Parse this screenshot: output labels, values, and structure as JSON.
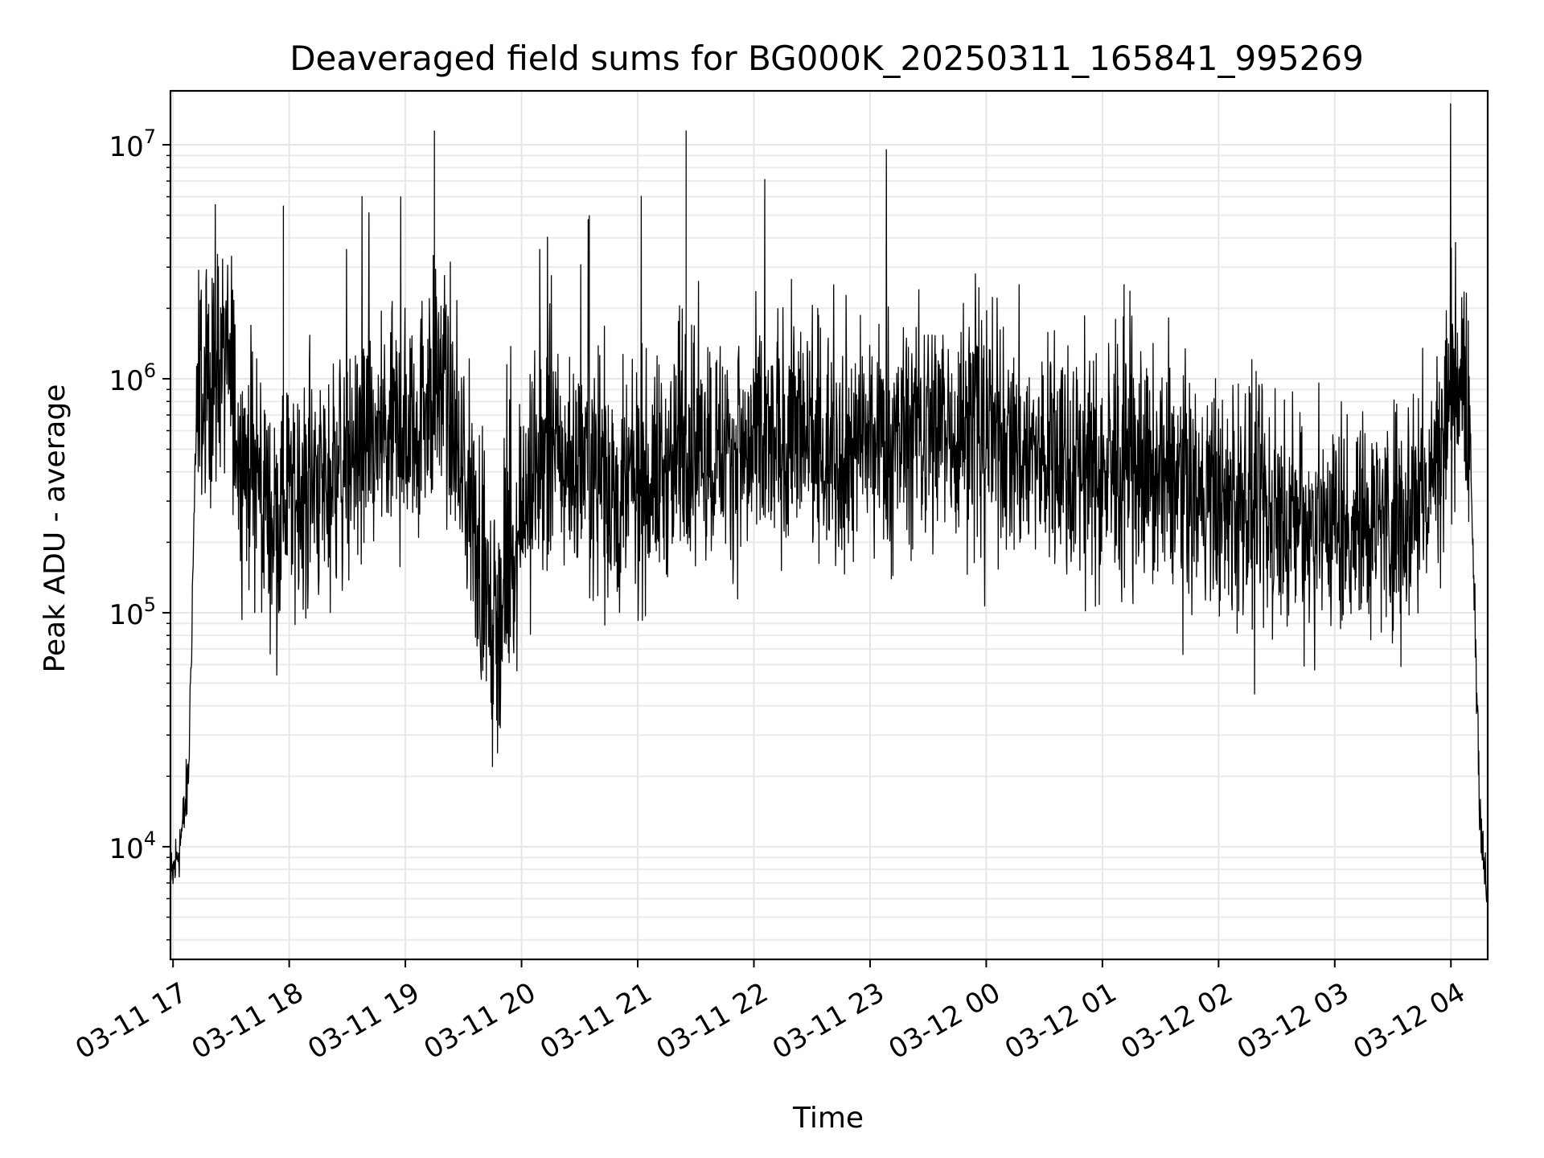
{
  "chart_data": {
    "type": "line",
    "title": "Deaveraged field sums for BG000K_20250311_165841_995269",
    "xlabel": "Time",
    "ylabel": "Peak ADU - average",
    "yscale": "log",
    "ylim": [
      3300,
      17000000
    ],
    "xlim": [
      "2025-03-11 16:58:41",
      "2025-03-12 04:19:00"
    ],
    "grid": true,
    "line_color": "#000000",
    "x_ticks": [
      "03-11 17",
      "03-11 18",
      "03-11 19",
      "03-11 20",
      "03-11 21",
      "03-11 22",
      "03-11 23",
      "03-12 00",
      "03-12 01",
      "03-12 02",
      "03-12 03",
      "03-12 04"
    ],
    "x_tick_times": [
      "2025-03-11 17:00",
      "2025-03-11 18:00",
      "2025-03-11 19:00",
      "2025-03-11 20:00",
      "2025-03-11 21:00",
      "2025-03-11 22:00",
      "2025-03-11 23:00",
      "2025-03-12 00:00",
      "2025-03-12 01:00",
      "2025-03-12 02:00",
      "2025-03-12 03:00",
      "2025-03-12 04:00"
    ],
    "y_ticks": [
      {
        "base": "10",
        "exp": "4",
        "value": 10000
      },
      {
        "base": "10",
        "exp": "5",
        "value": 100000
      },
      {
        "base": "10",
        "exp": "6",
        "value": 1000000
      },
      {
        "base": "10",
        "exp": "7",
        "value": 10000000
      }
    ],
    "series": [
      {
        "x": [
          "2025-03-11 16:59",
          "2025-03-11 17:02",
          "2025-03-11 17:05",
          "2025-03-11 17:08",
          "2025-03-11 17:12",
          "2025-03-11 17:16",
          "2025-03-11 17:20",
          "2025-03-11 17:25",
          "2025-03-11 17:30",
          "2025-03-11 17:35",
          "2025-03-11 17:40",
          "2025-03-11 17:45",
          "2025-03-11 17:50",
          "2025-03-11 17:55",
          "2025-03-11 18:00",
          "2025-03-11 18:10",
          "2025-03-11 18:20",
          "2025-03-11 18:30",
          "2025-03-11 18:40",
          "2025-03-11 18:50",
          "2025-03-11 19:00",
          "2025-03-11 19:10",
          "2025-03-11 19:15",
          "2025-03-11 19:20",
          "2025-03-11 19:30",
          "2025-03-11 19:40",
          "2025-03-11 19:45",
          "2025-03-11 19:50",
          "2025-03-11 20:00",
          "2025-03-11 20:15",
          "2025-03-11 20:30",
          "2025-03-11 20:33",
          "2025-03-11 20:40",
          "2025-03-11 20:50",
          "2025-03-11 21:00",
          "2025-03-11 21:15",
          "2025-03-11 21:25",
          "2025-03-11 21:30",
          "2025-03-11 21:45",
          "2025-03-11 22:00",
          "2025-03-11 22:15",
          "2025-03-11 22:20",
          "2025-03-11 22:30",
          "2025-03-11 22:45",
          "2025-03-11 23:00",
          "2025-03-11 23:30",
          "2025-03-12 00:00",
          "2025-03-12 00:30",
          "2025-03-12 01:00",
          "2025-03-12 01:30",
          "2025-03-12 02:00",
          "2025-03-12 02:30",
          "2025-03-12 03:00",
          "2025-03-12 03:30",
          "2025-03-12 03:50",
          "2025-03-12 04:00",
          "2025-03-12 04:05",
          "2025-03-12 04:10",
          "2025-03-12 04:15",
          "2025-03-12 04:19"
        ],
        "y": [
          7000,
          9000,
          12000,
          20000,
          700000,
          900000,
          1100000,
          1300000,
          1100000,
          500000,
          400000,
          350000,
          300000,
          250000,
          350000,
          300000,
          400000,
          450000,
          500000,
          550000,
          600000,
          800000,
          1000000,
          900000,
          400000,
          150000,
          80000,
          120000,
          300000,
          500000,
          400000,
          600000,
          450000,
          300000,
          350000,
          400000,
          600000,
          550000,
          500000,
          450000,
          550000,
          650000,
          500000,
          550000,
          500000,
          650000,
          600000,
          450000,
          400000,
          380000,
          300000,
          250000,
          250000,
          260000,
          350000,
          900000,
          1200000,
          500000,
          15000,
          5000
        ]
      }
    ]
  }
}
